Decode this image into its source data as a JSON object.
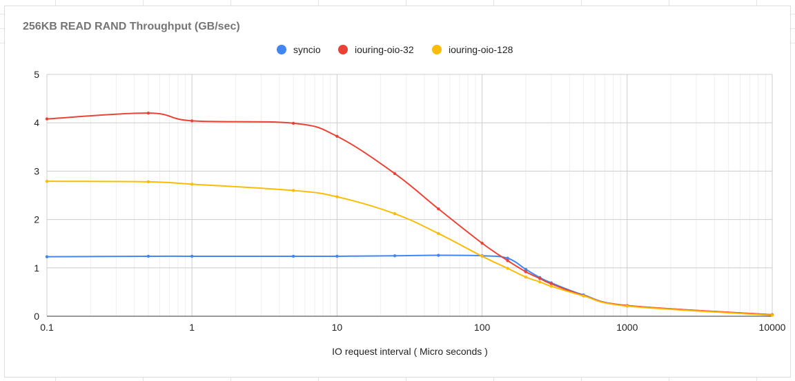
{
  "chart_data": {
    "type": "line",
    "title": "256KB READ RAND Throughput (GB/sec)",
    "xlabel": "IO request interval ( Micro seconds )",
    "ylabel": "",
    "x_scale": "log",
    "xlim": [
      0.1,
      10000
    ],
    "ylim": [
      0,
      5
    ],
    "x_ticks": [
      "0.1",
      "1",
      "10",
      "100",
      "1000",
      "10000"
    ],
    "y_ticks": [
      "0",
      "1",
      "2",
      "3",
      "4",
      "5"
    ],
    "grid": true,
    "legend": "top-center",
    "series": [
      {
        "name": "syncio",
        "color": "#4285f4",
        "points": [
          [
            0.1,
            1.23
          ],
          [
            0.5,
            1.24
          ],
          [
            1,
            1.24
          ],
          [
            5,
            1.24
          ],
          [
            10,
            1.24
          ],
          [
            25,
            1.25
          ],
          [
            50,
            1.26
          ],
          [
            100,
            1.25
          ],
          [
            150,
            1.2
          ],
          [
            200,
            0.97
          ],
          [
            250,
            0.8
          ],
          [
            300,
            0.69
          ],
          [
            500,
            0.44
          ],
          [
            1000,
            0.22
          ],
          [
            10000,
            0.03
          ]
        ]
      },
      {
        "name": "iouring-oio-32",
        "color": "#ea4335",
        "points": [
          [
            0.1,
            4.08
          ],
          [
            0.5,
            4.2
          ],
          [
            1,
            4.04
          ],
          [
            5,
            3.99
          ],
          [
            10,
            3.72
          ],
          [
            25,
            2.95
          ],
          [
            50,
            2.22
          ],
          [
            100,
            1.51
          ],
          [
            150,
            1.15
          ],
          [
            200,
            0.92
          ],
          [
            250,
            0.78
          ],
          [
            300,
            0.67
          ],
          [
            500,
            0.43
          ],
          [
            1000,
            0.22
          ],
          [
            10000,
            0.03
          ]
        ]
      },
      {
        "name": "iouring-oio-128",
        "color": "#fbbc04",
        "points": [
          [
            0.1,
            2.79
          ],
          [
            0.5,
            2.78
          ],
          [
            1,
            2.73
          ],
          [
            5,
            2.6
          ],
          [
            10,
            2.47
          ],
          [
            25,
            2.12
          ],
          [
            50,
            1.71
          ],
          [
            100,
            1.24
          ],
          [
            150,
            0.99
          ],
          [
            200,
            0.81
          ],
          [
            250,
            0.71
          ],
          [
            300,
            0.62
          ],
          [
            500,
            0.42
          ],
          [
            1000,
            0.21
          ],
          [
            10000,
            0.02
          ]
        ]
      }
    ]
  }
}
